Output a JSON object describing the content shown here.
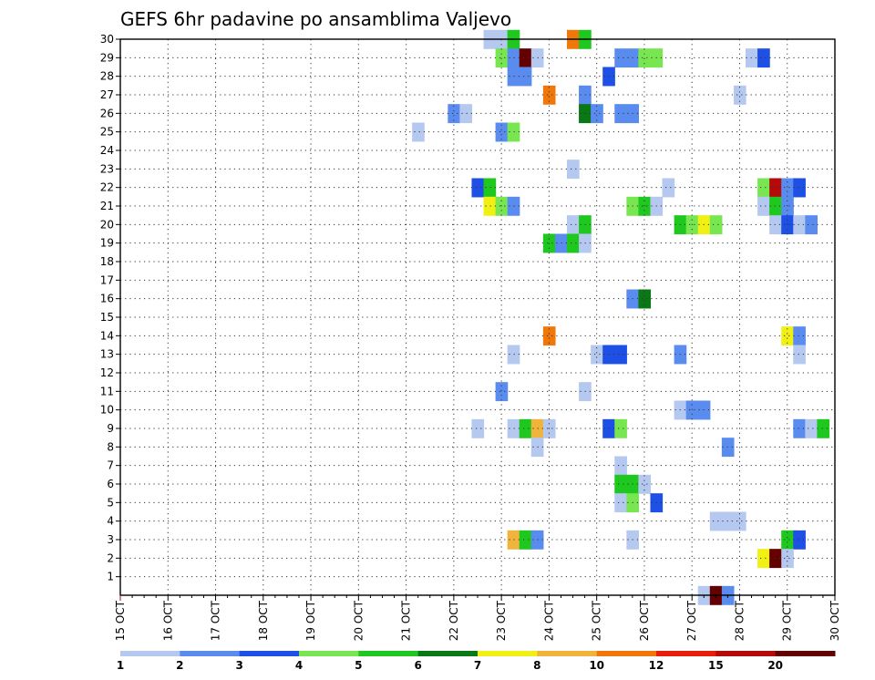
{
  "chart_data": {
    "type": "heatmap",
    "title": "GEFS 6hr padavine po ansamblima Valjevo",
    "x_tick_labels": [
      "15 OCT",
      "16 OCT",
      "17 OCT",
      "18 OCT",
      "19 OCT",
      "20 OCT",
      "21 OCT",
      "22 OCT",
      "23 OCT",
      "24 OCT",
      "25 OCT",
      "26 OCT",
      "27 OCT",
      "28 OCT",
      "29 OCT",
      "30 OCT"
    ],
    "y_tick_labels": [
      "1",
      "2",
      "3",
      "4",
      "5",
      "6",
      "7",
      "8",
      "9",
      "10",
      "11",
      "12",
      "13",
      "14",
      "15",
      "16",
      "17",
      "18",
      "19",
      "20",
      "21",
      "22",
      "23",
      "24",
      "25",
      "26",
      "27",
      "28",
      "29",
      "30"
    ],
    "xlim": [
      0,
      60
    ],
    "ylim": [
      0,
      30
    ],
    "grid": true,
    "legend": {
      "placement": "bottom",
      "labels": [
        "1",
        "2",
        "3",
        "4",
        "5",
        "6",
        "7",
        "8",
        "10",
        "12",
        "15",
        "20"
      ],
      "colors": [
        "#b4c8f0",
        "#5a8cf0",
        "#1e50e6",
        "#78e650",
        "#1ec81e",
        "#0a7814",
        "#f0f014",
        "#f0b43c",
        "#f0780a",
        "#e61e0a",
        "#b40a0a",
        "#640000"
      ]
    },
    "cells": [
      {
        "x": 31,
        "y": 30,
        "c": 0
      },
      {
        "x": 32,
        "y": 30,
        "c": 0
      },
      {
        "x": 33,
        "y": 30,
        "c": 4
      },
      {
        "x": 38,
        "y": 30,
        "c": 8
      },
      {
        "x": 39,
        "y": 30,
        "c": 4
      },
      {
        "x": 32,
        "y": 29,
        "c": 3
      },
      {
        "x": 33,
        "y": 29,
        "c": 1
      },
      {
        "x": 34,
        "y": 29,
        "c": 11
      },
      {
        "x": 35,
        "y": 29,
        "c": 0
      },
      {
        "x": 42,
        "y": 29,
        "c": 1
      },
      {
        "x": 43,
        "y": 29,
        "c": 1
      },
      {
        "x": 44,
        "y": 29,
        "c": 3
      },
      {
        "x": 45,
        "y": 29,
        "c": 3
      },
      {
        "x": 53,
        "y": 29,
        "c": 0
      },
      {
        "x": 54,
        "y": 29,
        "c": 2
      },
      {
        "x": 33,
        "y": 28,
        "c": 1
      },
      {
        "x": 34,
        "y": 28,
        "c": 1
      },
      {
        "x": 41,
        "y": 28,
        "c": 2
      },
      {
        "x": 36,
        "y": 27,
        "c": 8
      },
      {
        "x": 39,
        "y": 27,
        "c": 1
      },
      {
        "x": 52,
        "y": 27,
        "c": 0
      },
      {
        "x": 28,
        "y": 26,
        "c": 1
      },
      {
        "x": 29,
        "y": 26,
        "c": 0
      },
      {
        "x": 39,
        "y": 26,
        "c": 5
      },
      {
        "x": 40,
        "y": 26,
        "c": 1
      },
      {
        "x": 42,
        "y": 26,
        "c": 1
      },
      {
        "x": 43,
        "y": 26,
        "c": 1
      },
      {
        "x": 25,
        "y": 25,
        "c": 0
      },
      {
        "x": 32,
        "y": 25,
        "c": 1
      },
      {
        "x": 33,
        "y": 25,
        "c": 3
      },
      {
        "x": 38,
        "y": 23,
        "c": 0
      },
      {
        "x": 30,
        "y": 22,
        "c": 2
      },
      {
        "x": 31,
        "y": 22,
        "c": 4
      },
      {
        "x": 46,
        "y": 22,
        "c": 0
      },
      {
        "x": 54,
        "y": 22,
        "c": 3
      },
      {
        "x": 55,
        "y": 22,
        "c": 10
      },
      {
        "x": 56,
        "y": 22,
        "c": 1
      },
      {
        "x": 57,
        "y": 22,
        "c": 2
      },
      {
        "x": 31,
        "y": 21,
        "c": 6
      },
      {
        "x": 32,
        "y": 21,
        "c": 3
      },
      {
        "x": 33,
        "y": 21,
        "c": 1
      },
      {
        "x": 43,
        "y": 21,
        "c": 3
      },
      {
        "x": 44,
        "y": 21,
        "c": 4
      },
      {
        "x": 45,
        "y": 21,
        "c": 0
      },
      {
        "x": 54,
        "y": 21,
        "c": 0
      },
      {
        "x": 55,
        "y": 21,
        "c": 4
      },
      {
        "x": 56,
        "y": 21,
        "c": 1
      },
      {
        "x": 38,
        "y": 20,
        "c": 0
      },
      {
        "x": 39,
        "y": 20,
        "c": 4
      },
      {
        "x": 47,
        "y": 20,
        "c": 4
      },
      {
        "x": 48,
        "y": 20,
        "c": 3
      },
      {
        "x": 49,
        "y": 20,
        "c": 6
      },
      {
        "x": 50,
        "y": 20,
        "c": 3
      },
      {
        "x": 55,
        "y": 20,
        "c": 0
      },
      {
        "x": 56,
        "y": 20,
        "c": 2
      },
      {
        "x": 57,
        "y": 20,
        "c": 0
      },
      {
        "x": 58,
        "y": 20,
        "c": 1
      },
      {
        "x": 36,
        "y": 19,
        "c": 4
      },
      {
        "x": 37,
        "y": 19,
        "c": 1
      },
      {
        "x": 38,
        "y": 19,
        "c": 4
      },
      {
        "x": 39,
        "y": 19,
        "c": 0
      },
      {
        "x": 43,
        "y": 16,
        "c": 1
      },
      {
        "x": 44,
        "y": 16,
        "c": 5
      },
      {
        "x": 36,
        "y": 14,
        "c": 8
      },
      {
        "x": 56,
        "y": 14,
        "c": 6
      },
      {
        "x": 57,
        "y": 14,
        "c": 1
      },
      {
        "x": 33,
        "y": 13,
        "c": 0
      },
      {
        "x": 40,
        "y": 13,
        "c": 0
      },
      {
        "x": 41,
        "y": 13,
        "c": 2
      },
      {
        "x": 42,
        "y": 13,
        "c": 2
      },
      {
        "x": 47,
        "y": 13,
        "c": 1
      },
      {
        "x": 57,
        "y": 13,
        "c": 0
      },
      {
        "x": 32,
        "y": 11,
        "c": 1
      },
      {
        "x": 39,
        "y": 11,
        "c": 0
      },
      {
        "x": 47,
        "y": 10,
        "c": 0
      },
      {
        "x": 48,
        "y": 10,
        "c": 1
      },
      {
        "x": 49,
        "y": 10,
        "c": 1
      },
      {
        "x": 30,
        "y": 9,
        "c": 0
      },
      {
        "x": 33,
        "y": 9,
        "c": 0
      },
      {
        "x": 34,
        "y": 9,
        "c": 4
      },
      {
        "x": 35,
        "y": 9,
        "c": 7
      },
      {
        "x": 36,
        "y": 9,
        "c": 0
      },
      {
        "x": 41,
        "y": 9,
        "c": 2
      },
      {
        "x": 42,
        "y": 9,
        "c": 3
      },
      {
        "x": 57,
        "y": 9,
        "c": 1
      },
      {
        "x": 58,
        "y": 9,
        "c": 0
      },
      {
        "x": 59,
        "y": 9,
        "c": 4
      },
      {
        "x": 35,
        "y": 8,
        "c": 0
      },
      {
        "x": 51,
        "y": 8,
        "c": 1
      },
      {
        "x": 42,
        "y": 7,
        "c": 0
      },
      {
        "x": 42,
        "y": 6,
        "c": 4
      },
      {
        "x": 43,
        "y": 6,
        "c": 4
      },
      {
        "x": 44,
        "y": 6,
        "c": 0
      },
      {
        "x": 42,
        "y": 5,
        "c": 0
      },
      {
        "x": 43,
        "y": 5,
        "c": 3
      },
      {
        "x": 45,
        "y": 5,
        "c": 2
      },
      {
        "x": 50,
        "y": 4,
        "c": 0
      },
      {
        "x": 51,
        "y": 4,
        "c": 0
      },
      {
        "x": 52,
        "y": 4,
        "c": 0
      },
      {
        "x": 33,
        "y": 3,
        "c": 7
      },
      {
        "x": 34,
        "y": 3,
        "c": 4
      },
      {
        "x": 35,
        "y": 3,
        "c": 1
      },
      {
        "x": 43,
        "y": 3,
        "c": 0
      },
      {
        "x": 56,
        "y": 3,
        "c": 4
      },
      {
        "x": 57,
        "y": 3,
        "c": 2
      },
      {
        "x": 54,
        "y": 2,
        "c": 6
      },
      {
        "x": 55,
        "y": 2,
        "c": 11
      },
      {
        "x": 56,
        "y": 2,
        "c": 0
      },
      {
        "x": 49,
        "y": 0,
        "c": 0
      },
      {
        "x": 50,
        "y": 0,
        "c": 11
      },
      {
        "x": 51,
        "y": 0,
        "c": 1
      }
    ]
  }
}
